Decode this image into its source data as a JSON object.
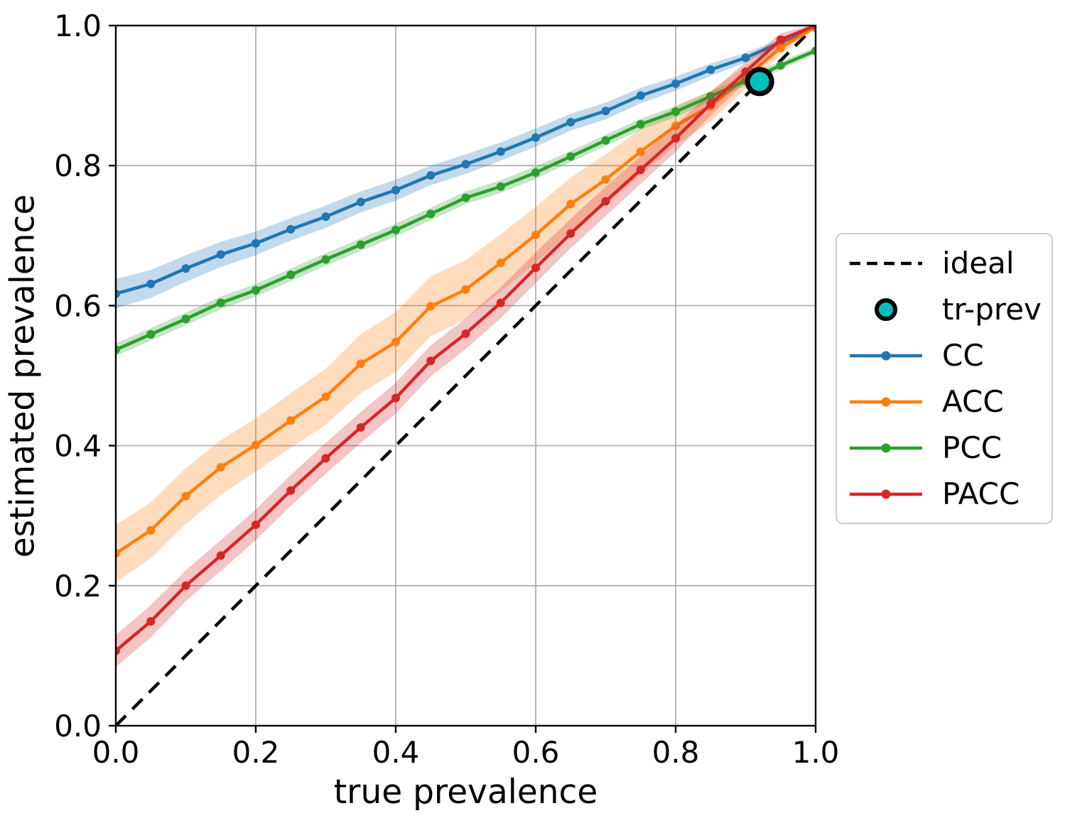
{
  "figure_title": "",
  "chart_data": {
    "type": "line",
    "title": "",
    "xlabel": "true prevalence",
    "ylabel": "estimated prevalence",
    "xlim": [
      0.0,
      1.0
    ],
    "ylim": [
      0.0,
      1.0
    ],
    "grid": true,
    "grid_color": "#b0b0b0",
    "legend_position": "center right outside",
    "xticks": [
      0.0,
      0.2,
      0.4,
      0.6,
      0.8,
      1.0
    ],
    "yticks": [
      0.0,
      0.2,
      0.4,
      0.6,
      0.8,
      1.0
    ],
    "xtick_labels": [
      "0.0",
      "0.2",
      "0.4",
      "0.6",
      "0.8",
      "1.0"
    ],
    "ytick_labels": [
      "0.0",
      "0.2",
      "0.4",
      "0.6",
      "0.8",
      "1.0"
    ],
    "x": [
      0.0,
      0.05,
      0.1,
      0.15,
      0.2,
      0.25,
      0.3,
      0.35,
      0.4,
      0.45,
      0.5,
      0.55,
      0.6,
      0.65,
      0.7,
      0.75,
      0.8,
      0.85,
      0.9,
      0.95,
      1.0
    ],
    "series": [
      {
        "name": "CC",
        "color": "#1f77b4",
        "values": [
          0.617,
          0.631,
          0.653,
          0.673,
          0.689,
          0.709,
          0.727,
          0.748,
          0.765,
          0.786,
          0.802,
          0.82,
          0.84,
          0.862,
          0.878,
          0.9,
          0.917,
          0.937,
          0.954,
          0.976,
          0.997
        ],
        "band_halfwidth": [
          0.021,
          0.02,
          0.019,
          0.018,
          0.017,
          0.016,
          0.016,
          0.015,
          0.015,
          0.014,
          0.014,
          0.013,
          0.013,
          0.012,
          0.012,
          0.011,
          0.01,
          0.009,
          0.007,
          0.005,
          0.002
        ]
      },
      {
        "name": "ACC",
        "color": "#ff7f0e",
        "values": [
          0.246,
          0.279,
          0.328,
          0.369,
          0.401,
          0.436,
          0.47,
          0.517,
          0.548,
          0.599,
          0.623,
          0.661,
          0.701,
          0.745,
          0.78,
          0.82,
          0.857,
          0.885,
          0.926,
          0.968,
          0.998
        ],
        "band_halfwidth": [
          0.041,
          0.04,
          0.04,
          0.039,
          0.038,
          0.039,
          0.04,
          0.042,
          0.043,
          0.043,
          0.042,
          0.041,
          0.04,
          0.038,
          0.036,
          0.033,
          0.028,
          0.022,
          0.016,
          0.009,
          0.002
        ]
      },
      {
        "name": "PCC",
        "color": "#2ca02c",
        "values": [
          0.537,
          0.559,
          0.581,
          0.604,
          0.622,
          0.644,
          0.666,
          0.687,
          0.708,
          0.731,
          0.754,
          0.77,
          0.79,
          0.813,
          0.836,
          0.859,
          0.877,
          0.899,
          0.921,
          0.943,
          0.964
        ],
        "band_halfwidth": [
          0.009,
          0.009,
          0.009,
          0.009,
          0.009,
          0.009,
          0.009,
          0.009,
          0.009,
          0.009,
          0.009,
          0.009,
          0.009,
          0.008,
          0.008,
          0.008,
          0.008,
          0.007,
          0.007,
          0.006,
          0.005
        ]
      },
      {
        "name": "PACC",
        "color": "#d62728",
        "values": [
          0.107,
          0.149,
          0.2,
          0.243,
          0.287,
          0.336,
          0.382,
          0.426,
          0.468,
          0.521,
          0.56,
          0.604,
          0.654,
          0.703,
          0.749,
          0.794,
          0.839,
          0.888,
          0.934,
          0.98,
          1.0
        ],
        "band_halfwidth": [
          0.023,
          0.023,
          0.022,
          0.022,
          0.022,
          0.022,
          0.022,
          0.022,
          0.022,
          0.022,
          0.022,
          0.022,
          0.022,
          0.021,
          0.021,
          0.02,
          0.019,
          0.017,
          0.014,
          0.009,
          0.002
        ]
      }
    ],
    "ideal": {
      "label": "ideal",
      "color": "#000000",
      "style": "dashed",
      "from": [
        0.0,
        0.0
      ],
      "to": [
        1.0,
        1.0
      ]
    },
    "tr_prev": {
      "label": "tr-prev",
      "x": 0.92,
      "y": 0.92,
      "fill": "#00bfbf",
      "edge": "#000000"
    }
  },
  "legend": {
    "items": [
      {
        "id": "ideal",
        "label": "ideal",
        "type": "dash",
        "color": "#000000"
      },
      {
        "id": "tr-prev",
        "label": "tr-prev",
        "type": "circle",
        "color": "#00bfbf",
        "edge": "#000000"
      },
      {
        "id": "cc",
        "label": "CC",
        "type": "line",
        "color": "#1f77b4"
      },
      {
        "id": "acc",
        "label": "ACC",
        "type": "line",
        "color": "#ff7f0e"
      },
      {
        "id": "pcc",
        "label": "PCC",
        "type": "line",
        "color": "#2ca02c"
      },
      {
        "id": "pacc",
        "label": "PACC",
        "type": "line",
        "color": "#d62728"
      }
    ]
  }
}
